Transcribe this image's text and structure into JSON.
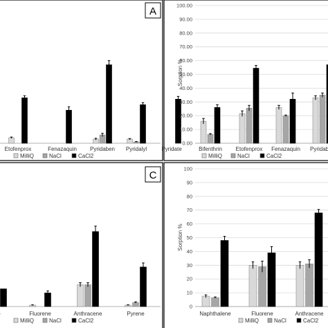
{
  "legend_labels": [
    "MilliQ",
    "NaCl",
    "CaCl2"
  ],
  "series_colors": {
    "MilliQ": "#d9d9d9",
    "NaCl": "#a6a6a6",
    "CaCl2": "#000000"
  },
  "chart_data": [
    {
      "panel": "A",
      "type": "bar",
      "panel_label": "A",
      "ylabel": "",
      "ylim": [
        0,
        100
      ],
      "categories": [
        "Etofenprox",
        "Fenazaquin",
        "Pyridaben",
        "Pyridalyl",
        "Pyridate"
      ],
      "series": [
        {
          "name": "MilliQ",
          "values": [
            4,
            0,
            3,
            3,
            0
          ],
          "errors": [
            0.5,
            0,
            0.6,
            0.4,
            0
          ]
        },
        {
          "name": "NaCl",
          "values": [
            0,
            0,
            6,
            1,
            0
          ],
          "errors": [
            0,
            0,
            1.2,
            0.3,
            0
          ]
        },
        {
          "name": "CaCl2",
          "values": [
            33,
            24,
            57,
            28,
            32
          ],
          "errors": [
            1.5,
            2.5,
            3,
            1.5,
            2
          ]
        }
      ]
    },
    {
      "panel": "B",
      "type": "bar",
      "ylabel": "Sorption %",
      "ylim": [
        0,
        100
      ],
      "yticks": [
        "0.00",
        "10.00",
        "20.00",
        "30.00",
        "40.00",
        "50.00",
        "60.00",
        "70.00",
        "80.00",
        "90.00",
        "100.00"
      ],
      "categories": [
        "Bifenthrin",
        "Etofenprox",
        "Fenazaquin",
        "Pyridaben"
      ],
      "series": [
        {
          "name": "MilliQ",
          "values": [
            16,
            21.5,
            26,
            33
          ],
          "errors": [
            2,
            2,
            1.5,
            1.5
          ]
        },
        {
          "name": "NaCl",
          "values": [
            6.5,
            25.5,
            20,
            35
          ],
          "errors": [
            0.5,
            2,
            0.5,
            1.5
          ]
        },
        {
          "name": "CaCl2",
          "values": [
            26,
            54.5,
            32,
            57
          ],
          "errors": [
            2,
            2,
            4.5,
            5
          ]
        }
      ]
    },
    {
      "panel": "C",
      "type": "bar",
      "panel_label": "C",
      "ylabel": "",
      "ylim": [
        0,
        100
      ],
      "categories": [
        "ene",
        "Fluorene",
        "Anthracene",
        "Pyrene"
      ],
      "series": [
        {
          "name": "MilliQ",
          "values": [
            0,
            1,
            16,
            1
          ],
          "errors": [
            0,
            0.3,
            1.5,
            0.3
          ]
        },
        {
          "name": "NaCl",
          "values": [
            0,
            0,
            16,
            3
          ],
          "errors": [
            0,
            0,
            1.5,
            0.5
          ]
        },
        {
          "name": "CaCl2",
          "values": [
            13,
            10,
            55,
            29
          ],
          "errors": [
            0,
            1.5,
            4,
            3
          ]
        }
      ]
    },
    {
      "panel": "D",
      "type": "bar",
      "ylabel": "Sorption %",
      "ylim": [
        0,
        100
      ],
      "yticks": [
        "0",
        "10",
        "20",
        "30",
        "40",
        "50",
        "60",
        "70",
        "80",
        "90",
        "100"
      ],
      "categories": [
        "Naphthalene",
        "Fluorene",
        "Anthracene"
      ],
      "series": [
        {
          "name": "MilliQ",
          "values": [
            7.5,
            30,
            30
          ],
          "errors": [
            1,
            2.5,
            2.5
          ]
        },
        {
          "name": "NaCl",
          "values": [
            6.5,
            29,
            31
          ],
          "errors": [
            0.5,
            4,
            3
          ]
        },
        {
          "name": "CaCl2",
          "values": [
            48,
            39,
            68
          ],
          "errors": [
            3,
            4.5,
            2.5
          ]
        }
      ]
    }
  ]
}
